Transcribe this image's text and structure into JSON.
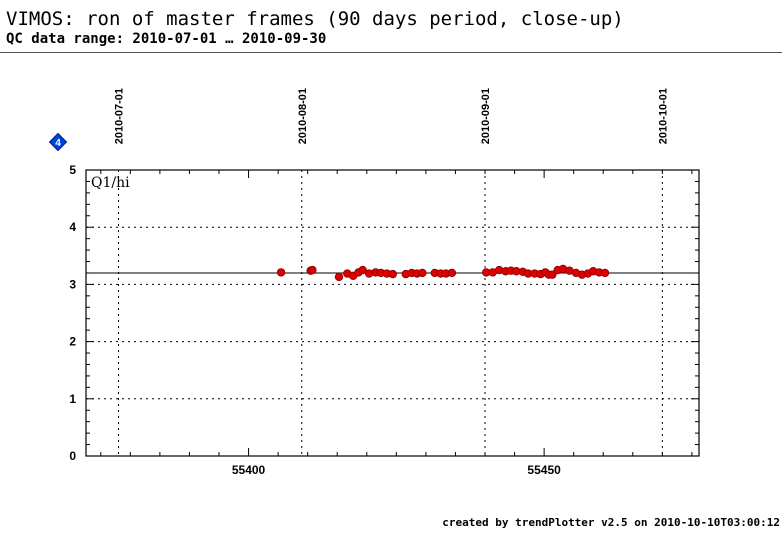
{
  "header": {
    "title": "VIMOS: ron of master frames (90 days period, close-up)",
    "subtitle": "QC data range: 2010-07-01 … 2010-09-30"
  },
  "footer": {
    "credit": "created by trendPlotter v2.5 on 2010-10-10T03:00:12"
  },
  "colors": {
    "points": "#dd0000",
    "marker_icon": "#0044dd",
    "axes": "#000000"
  },
  "icons": {
    "marker": "diamond-4-icon",
    "marker_text": "4"
  },
  "chart_data": {
    "type": "scatter",
    "panel_label": "Q1/hi",
    "xlabel": "",
    "ylabel": "",
    "xlim": [
      55372.5,
      55476.2
    ],
    "ylim": [
      0,
      5
    ],
    "x_ticks": [
      55400,
      55450
    ],
    "y_ticks": [
      0,
      1,
      2,
      3,
      4,
      5
    ],
    "grid": "dotted",
    "reference_line": 3.2,
    "date_lines": [
      {
        "label": "2010-07-01",
        "mjd": 55378
      },
      {
        "label": "2010-08-01",
        "mjd": 55409
      },
      {
        "label": "2010-09-01",
        "mjd": 55440
      },
      {
        "label": "2010-10-01",
        "mjd": 55470
      }
    ],
    "series": [
      {
        "points": [
          [
            55405.5,
            3.21
          ],
          [
            55410.5,
            3.24
          ],
          [
            55410.8,
            3.25
          ],
          [
            55415.3,
            3.13
          ],
          [
            55416.7,
            3.19
          ],
          [
            55417.7,
            3.15
          ],
          [
            55418.6,
            3.21
          ],
          [
            55419.3,
            3.25
          ],
          [
            55420.4,
            3.19
          ],
          [
            55421.5,
            3.21
          ],
          [
            55422.4,
            3.2
          ],
          [
            55423.4,
            3.19
          ],
          [
            55424.4,
            3.18
          ],
          [
            55426.6,
            3.18
          ],
          [
            55427.6,
            3.2
          ],
          [
            55428.5,
            3.19
          ],
          [
            55429.4,
            3.2
          ],
          [
            55431.5,
            3.2
          ],
          [
            55432.5,
            3.19
          ],
          [
            55433.4,
            3.19
          ],
          [
            55434.4,
            3.2
          ],
          [
            55440.2,
            3.21
          ],
          [
            55441.3,
            3.21
          ],
          [
            55442.4,
            3.25
          ],
          [
            55443.5,
            3.23
          ],
          [
            55444.4,
            3.24
          ],
          [
            55445.3,
            3.23
          ],
          [
            55446.4,
            3.22
          ],
          [
            55447.3,
            3.19
          ],
          [
            55448.4,
            3.19
          ],
          [
            55449.4,
            3.18
          ],
          [
            55450.2,
            3.21
          ],
          [
            55450.8,
            3.17
          ],
          [
            55451.4,
            3.17
          ],
          [
            55452.3,
            3.25
          ],
          [
            55453.2,
            3.27
          ],
          [
            55454.3,
            3.24
          ],
          [
            55455.4,
            3.2
          ],
          [
            55456.4,
            3.17
          ],
          [
            55457.4,
            3.19
          ],
          [
            55458.3,
            3.23
          ],
          [
            55459.3,
            3.21
          ],
          [
            55460.3,
            3.2
          ]
        ]
      }
    ]
  }
}
